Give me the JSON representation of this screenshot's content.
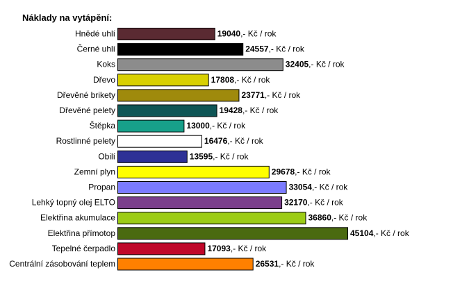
{
  "chart_data": {
    "type": "bar",
    "orientation": "horizontal",
    "title": "Náklady na vytápění:",
    "value_suffix": ",- Kč / rok",
    "xlim": [
      0,
      45104
    ],
    "categories": [
      "Hnědé uhlí",
      "Černé uhlí",
      "Koks",
      "Dřevo",
      "Dřevěné brikety",
      "Dřevěné pelety",
      "Štěpka",
      "Rostlinné pelety",
      "Obilí",
      "Zemní plyn",
      "Propan",
      "Lehký topný olej ELTO",
      "Elektřina akumulace",
      "Elektřina přímotop",
      "Tepelné čerpadlo",
      "Centrální zásobování teplem"
    ],
    "values": [
      19040,
      24557,
      32405,
      17808,
      23771,
      19428,
      13000,
      16476,
      13595,
      29678,
      33054,
      32170,
      36860,
      45104,
      17093,
      26531
    ],
    "colors": [
      "#5a2a32",
      "#000000",
      "#8c8c8c",
      "#d8d000",
      "#9f8a0c",
      "#0f5656",
      "#17a08a",
      "#ffffff",
      "#2e3196",
      "#ffff00",
      "#7b7bff",
      "#7b3f8c",
      "#9ccc16",
      "#4a6a10",
      "#c0082a",
      "#ff8000"
    ]
  }
}
